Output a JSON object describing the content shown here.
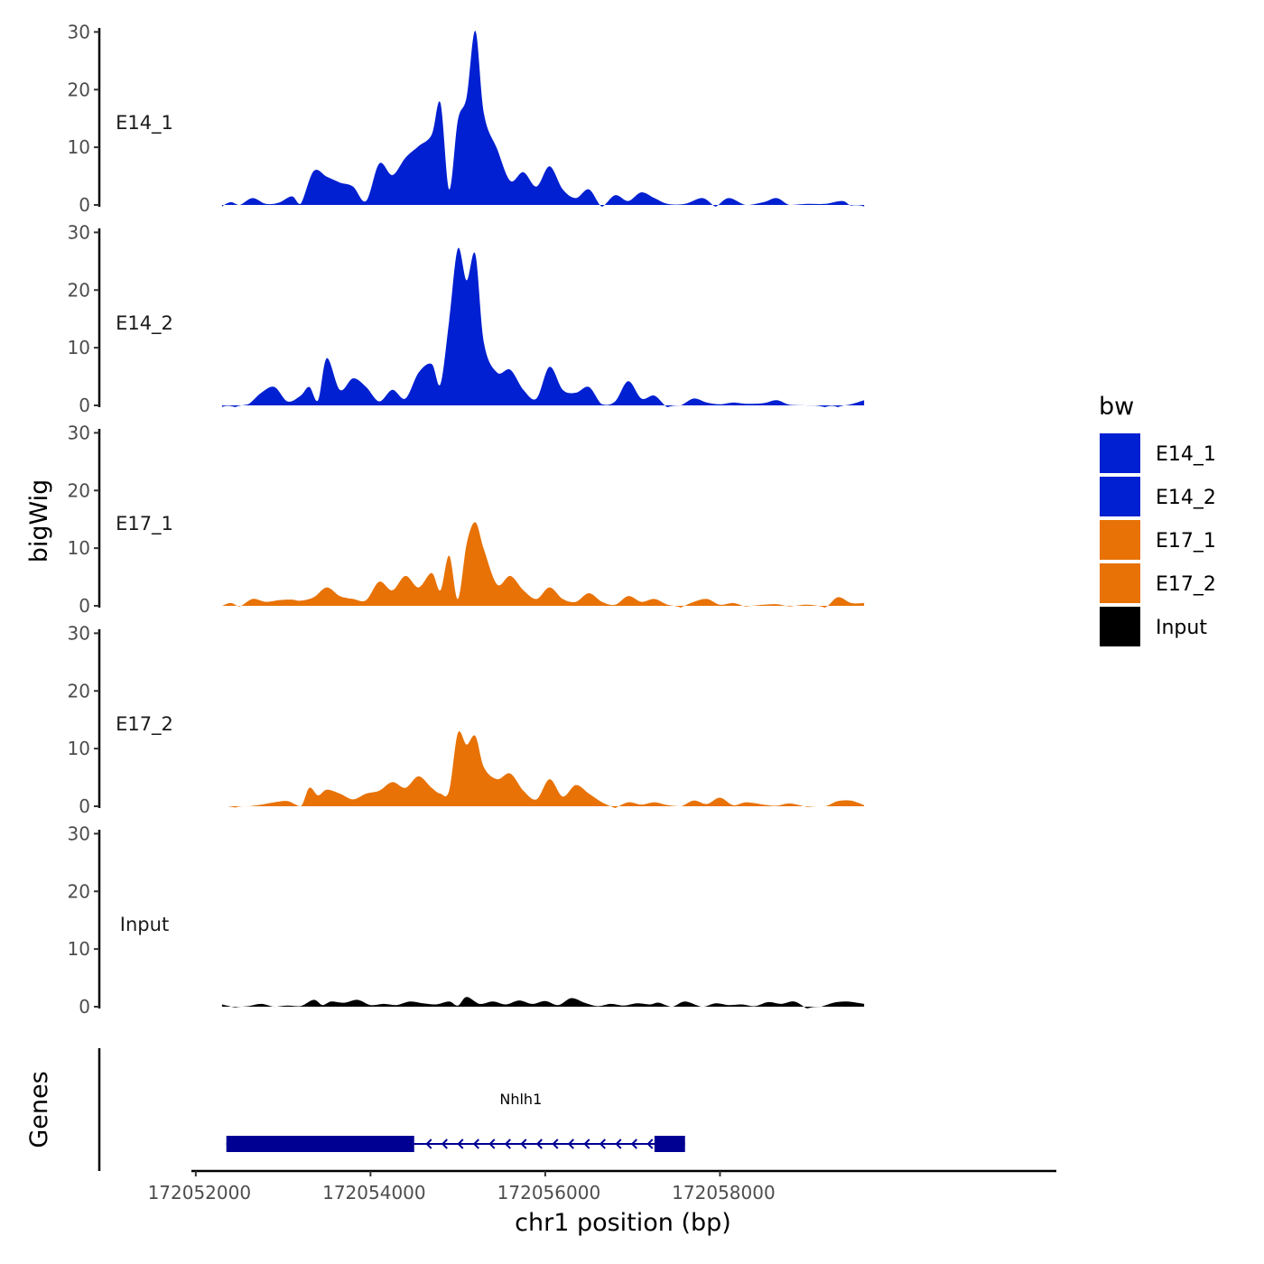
{
  "chart_data": {
    "type": "area",
    "title": "",
    "ylabel": "bigWig",
    "xlabel": "chr1 position (bp)",
    "xlim": [
      172051950,
      172061850
    ],
    "ylim": [
      0,
      31
    ],
    "yticks": [
      0,
      10,
      20,
      30
    ],
    "xticks": [
      172052000,
      172054000,
      172056000,
      172058000
    ],
    "xtick_labels": [
      "172052000",
      "172054000",
      "172056000",
      "172058000"
    ],
    "legend": {
      "title": "bw",
      "position": "right",
      "entries": [
        {
          "label": "E14_1",
          "color": "#0020d1"
        },
        {
          "label": "E14_2",
          "color": "#0020d1"
        },
        {
          "label": "E17_1",
          "color": "#e87205"
        },
        {
          "label": "E17_2",
          "color": "#e87205"
        },
        {
          "label": "Input",
          "color": "#000000"
        }
      ]
    },
    "series": [
      {
        "name": "E14_1",
        "color": "#0020d1",
        "x": [
          172052300,
          172052400,
          172052500,
          172052650,
          172052800,
          172052950,
          172053100,
          172053200,
          172053350,
          172053500,
          172053650,
          172053800,
          172053950,
          172054100,
          172054250,
          172054400,
          172054550,
          172054700,
          172054800,
          172054900,
          172055000,
          172055100,
          172055200,
          172055300,
          172055450,
          172055600,
          172055750,
          172055900,
          172056050,
          172056200,
          172056350,
          172056500,
          172056650,
          172056800,
          172056950,
          172057100,
          172057250,
          172057400,
          172057600,
          172057800,
          172057950,
          172058100,
          172058300,
          172058500,
          172058650,
          172058800,
          172059000,
          172059200,
          172059400,
          172059500,
          172059650
        ],
        "values": [
          0,
          0.8,
          0.3,
          1.5,
          0.5,
          0.7,
          1.8,
          0.5,
          6.2,
          5.2,
          4.2,
          3.5,
          1,
          7.5,
          5.5,
          8.5,
          10.5,
          12.5,
          18,
          3,
          15,
          19,
          30.5,
          16,
          10,
          4.5,
          6,
          3.5,
          7,
          3,
          1.5,
          3,
          0,
          2,
          1,
          2.5,
          1.5,
          0.5,
          0.5,
          1.5,
          0,
          1.5,
          0.3,
          0.8,
          1.5,
          0.3,
          0.5,
          0.5,
          1,
          0.2,
          0
        ],
        "axis_tick_labels": [
          "0",
          "10",
          "20",
          "30"
        ]
      },
      {
        "name": "E14_2",
        "color": "#0020d1",
        "x": [
          172052300,
          172052450,
          172052600,
          172052750,
          172052900,
          172053050,
          172053200,
          172053300,
          172053400,
          172053500,
          172053650,
          172053800,
          172053950,
          172054100,
          172054250,
          172054400,
          172054550,
          172054700,
          172054800,
          172054900,
          172055000,
          172055100,
          172055200,
          172055300,
          172055450,
          172055600,
          172055750,
          172055900,
          172056050,
          172056200,
          172056350,
          172056500,
          172056650,
          172056800,
          172056950,
          172057100,
          172057250,
          172057400,
          172057550,
          172057700,
          172057850,
          172058000,
          172058150,
          172058300,
          172058500,
          172058650,
          172058800,
          172059000,
          172059200,
          172059350,
          172059500,
          172059650
        ],
        "values": [
          0,
          0,
          0.5,
          2.5,
          3.5,
          1,
          2,
          3.5,
          1.2,
          8.5,
          3,
          5,
          3.5,
          1,
          3,
          1.5,
          6,
          7.5,
          4,
          15,
          27.5,
          22,
          26.5,
          11,
          6,
          6.5,
          3,
          1.5,
          7,
          3,
          2.5,
          3.5,
          0.5,
          1,
          4.5,
          1.5,
          2,
          0,
          0.3,
          1.5,
          0.8,
          0.5,
          0.8,
          0.6,
          0.7,
          1.2,
          0.4,
          0.3,
          0,
          0,
          0.5,
          1.2
        ],
        "axis_tick_labels": [
          "0",
          "10",
          "20",
          "30"
        ]
      },
      {
        "name": "E17_1",
        "color": "#e87205",
        "x": [
          172052300,
          172052400,
          172052500,
          172052650,
          172052800,
          172052950,
          172053100,
          172053200,
          172053350,
          172053500,
          172053650,
          172053800,
          172053950,
          172054100,
          172054250,
          172054400,
          172054550,
          172054700,
          172054800,
          172054900,
          172055000,
          172055100,
          172055200,
          172055300,
          172055450,
          172055600,
          172055750,
          172055900,
          172056050,
          172056200,
          172056350,
          172056500,
          172056650,
          172056800,
          172056950,
          172057100,
          172057250,
          172057400,
          172057550,
          172057700,
          172057850,
          172058000,
          172058150,
          172058300,
          172058500,
          172058650,
          172058800,
          172059000,
          172059200,
          172059350,
          172059500,
          172059650
        ],
        "values": [
          0.3,
          0.8,
          0.2,
          1.5,
          1,
          1.3,
          1.4,
          1.2,
          1.8,
          3.5,
          2,
          1.5,
          1.3,
          4.5,
          3,
          5.5,
          3.5,
          6,
          3,
          9,
          1.5,
          11,
          14.8,
          10,
          4,
          5.5,
          3,
          1.5,
          3.5,
          1.5,
          1,
          2.5,
          1,
          0.5,
          2,
          1,
          1.5,
          0.5,
          0,
          1,
          1.5,
          0.5,
          0.8,
          0.2,
          0.5,
          0.6,
          0.2,
          0.5,
          0,
          1.8,
          0.8,
          0.8
        ],
        "axis_tick_labels": [
          "0",
          "10",
          "20",
          "30"
        ]
      },
      {
        "name": "E17_2",
        "color": "#e87205",
        "x": [
          172052300,
          172052450,
          172052600,
          172052750,
          172052900,
          172053050,
          172053200,
          172053300,
          172053400,
          172053500,
          172053650,
          172053800,
          172053950,
          172054100,
          172054250,
          172054400,
          172054550,
          172054700,
          172054800,
          172054900,
          172055000,
          172055100,
          172055200,
          172055300,
          172055450,
          172055600,
          172055750,
          172055900,
          172056050,
          172056200,
          172056350,
          172056500,
          172056650,
          172056800,
          172056950,
          172057100,
          172057250,
          172057400,
          172057550,
          172057700,
          172057850,
          172058000,
          172058150,
          172058300,
          172058500,
          172058650,
          172058800,
          172059000,
          172059200,
          172059350,
          172059500,
          172059650
        ],
        "values": [
          0.3,
          0.1,
          0.3,
          0.6,
          1,
          1.2,
          0.3,
          3.5,
          2.2,
          3.2,
          2.5,
          1.5,
          2.5,
          3,
          4.5,
          3.5,
          5.5,
          3.5,
          2.5,
          3,
          13,
          11,
          12.5,
          7,
          5,
          6,
          3,
          1.5,
          5,
          2,
          4,
          2.5,
          1,
          0,
          1,
          0.6,
          1,
          0.5,
          0.3,
          1.3,
          0.7,
          1.8,
          0.5,
          1,
          0.6,
          0.4,
          0.8,
          0.2,
          0.3,
          1.2,
          1.3,
          0.5
        ],
        "axis_tick_labels": [
          "0",
          "10",
          "20",
          "30"
        ]
      },
      {
        "name": "Input",
        "color": "#000000",
        "x": [
          172052300,
          172052450,
          172052600,
          172052750,
          172052900,
          172053050,
          172053200,
          172053350,
          172053450,
          172053550,
          172053700,
          172053850,
          172054000,
          172054150,
          172054300,
          172054450,
          172054600,
          172054750,
          172054900,
          172055000,
          172055100,
          172055250,
          172055400,
          172055550,
          172055700,
          172055850,
          172056000,
          172056150,
          172056300,
          172056450,
          172056600,
          172056750,
          172056900,
          172057050,
          172057200,
          172057300,
          172057450,
          172057600,
          172057800,
          172057950,
          172058100,
          172058250,
          172058400,
          172058550,
          172058700,
          172058850,
          172059000,
          172059150,
          172059300,
          172059450,
          172059650
        ],
        "values": [
          0.7,
          0.2,
          0.4,
          0.8,
          0.3,
          0.5,
          0.4,
          1.5,
          0.6,
          1.2,
          1,
          1.5,
          0.6,
          0.8,
          0.6,
          1.2,
          0.9,
          0.7,
          1.2,
          0.5,
          2,
          0.8,
          1.2,
          0.7,
          1.4,
          0.8,
          1.3,
          0.6,
          1.8,
          1,
          0.4,
          0.8,
          0.5,
          0.9,
          0.7,
          1,
          0.3,
          1.2,
          0.3,
          0.9,
          0.6,
          0.7,
          0.4,
          1.1,
          0.8,
          1.2,
          0,
          0.3,
          1,
          1.2,
          0.8
        ],
        "axis_tick_labels": [
          "0",
          "10",
          "20",
          "30"
        ]
      }
    ],
    "genes_track": {
      "ylabel": "Genes",
      "genes": [
        {
          "name": "Nhlh1",
          "start": 172052350,
          "end": 172057600,
          "strand": "-",
          "thick_blocks": [
            [
              172052350,
              172054500
            ],
            [
              172057250,
              172057600
            ]
          ],
          "color": "#000093"
        }
      ]
    }
  }
}
